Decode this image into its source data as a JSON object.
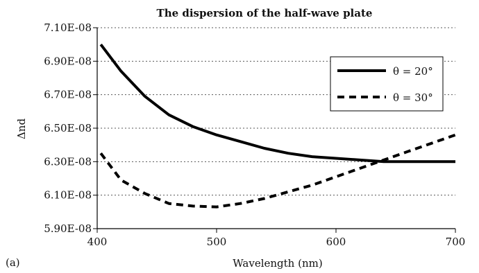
{
  "chart_data": {
    "type": "line",
    "title": "The dispersion of the half-wave plate",
    "xlabel": "Wavelength (nm)",
    "ylabel": "Δnd",
    "panel_label": "(a)",
    "xlim": [
      400,
      700
    ],
    "ylim": [
      5.9e-08,
      7.1e-08
    ],
    "x_ticks": [
      400,
      500,
      600,
      700
    ],
    "x_tick_labels": [
      "400",
      "500",
      "600",
      "700"
    ],
    "y_ticks": [
      5.9e-08,
      6.1e-08,
      6.3e-08,
      6.5e-08,
      6.7e-08,
      6.9e-08,
      7.1e-08
    ],
    "y_tick_labels": [
      "5.90E-08",
      "6.10E-08",
      "6.30E-08",
      "6.50E-08",
      "6.70E-08",
      "6.90E-08",
      "7.10E-08"
    ],
    "grid": "horizontal dotted",
    "legend_position": "right",
    "series": [
      {
        "name": "θ = 20°",
        "style": "solid",
        "color": "#000000",
        "x": [
          403,
          420,
          440,
          460,
          480,
          500,
          520,
          540,
          560,
          580,
          600,
          620,
          640,
          660,
          680,
          700
        ],
        "y": [
          7e-08,
          6.84e-08,
          6.69e-08,
          6.58e-08,
          6.51e-08,
          6.46e-08,
          6.42e-08,
          6.38e-08,
          6.35e-08,
          6.33e-08,
          6.32e-08,
          6.31e-08,
          6.3e-08,
          6.3e-08,
          6.3e-08,
          6.3e-08
        ]
      },
      {
        "name": "θ = 30°",
        "style": "dashed",
        "color": "#000000",
        "x": [
          403,
          420,
          440,
          460,
          480,
          500,
          520,
          540,
          560,
          580,
          600,
          620,
          640,
          660,
          680,
          700
        ],
        "y": [
          6.35e-08,
          6.19e-08,
          6.11e-08,
          6.05e-08,
          6.035e-08,
          6.03e-08,
          6.05e-08,
          6.08e-08,
          6.12e-08,
          6.16e-08,
          6.21e-08,
          6.26e-08,
          6.31e-08,
          6.36e-08,
          6.41e-08,
          6.46e-08
        ]
      }
    ]
  }
}
